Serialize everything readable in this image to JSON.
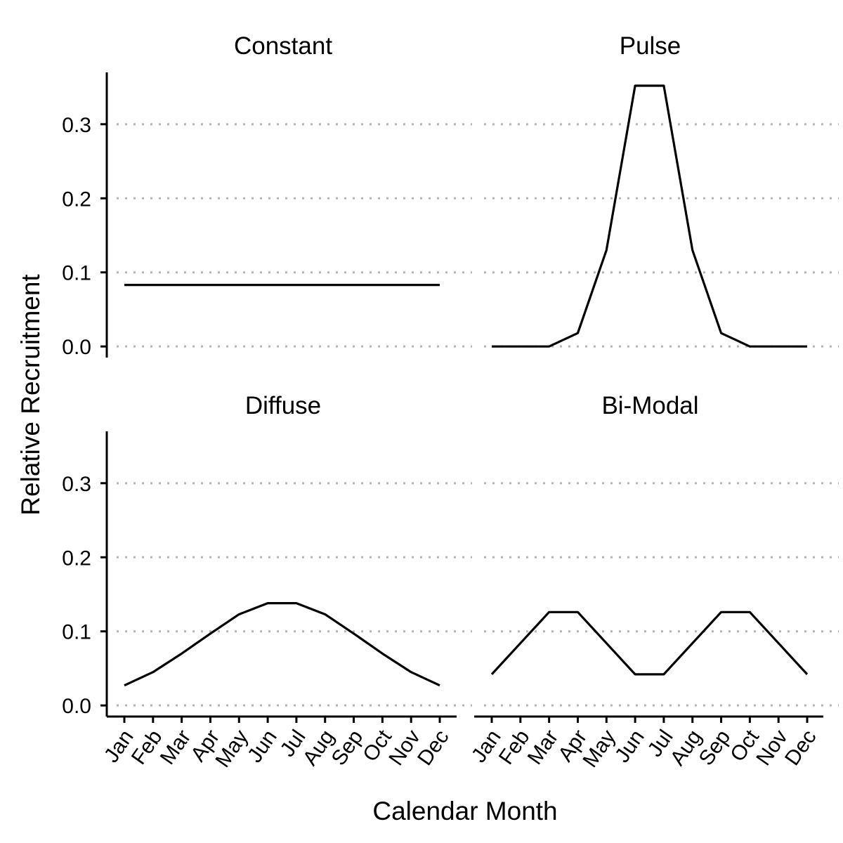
{
  "chart_data": {
    "type": "line",
    "xlabel": "Calendar Month",
    "ylabel": "Relative Recruitment",
    "categories": [
      "Jan",
      "Feb",
      "Mar",
      "Apr",
      "May",
      "Jun",
      "Jul",
      "Aug",
      "Sep",
      "Oct",
      "Nov",
      "Dec"
    ],
    "ylim": [
      -0.015,
      0.37
    ],
    "yticks": [
      0.0,
      0.1,
      0.2,
      0.3
    ],
    "ytick_labels": [
      "0.0",
      "0.1",
      "0.2",
      "0.3"
    ],
    "grid": "horizontal dotted",
    "panels": [
      {
        "title": "Constant",
        "values": [
          0.083,
          0.083,
          0.083,
          0.083,
          0.083,
          0.083,
          0.083,
          0.083,
          0.083,
          0.083,
          0.083,
          0.083
        ]
      },
      {
        "title": "Pulse",
        "values": [
          0.0,
          0.0,
          0.0,
          0.018,
          0.13,
          0.352,
          0.352,
          0.13,
          0.018,
          0.0,
          0.0,
          0.0
        ]
      },
      {
        "title": "Diffuse",
        "values": [
          0.027,
          0.045,
          0.07,
          0.097,
          0.123,
          0.138,
          0.138,
          0.123,
          0.097,
          0.07,
          0.045,
          0.027
        ]
      },
      {
        "title": "Bi-Modal",
        "values": [
          0.042,
          0.084,
          0.126,
          0.126,
          0.084,
          0.042,
          0.042,
          0.084,
          0.126,
          0.126,
          0.084,
          0.042
        ]
      }
    ]
  }
}
